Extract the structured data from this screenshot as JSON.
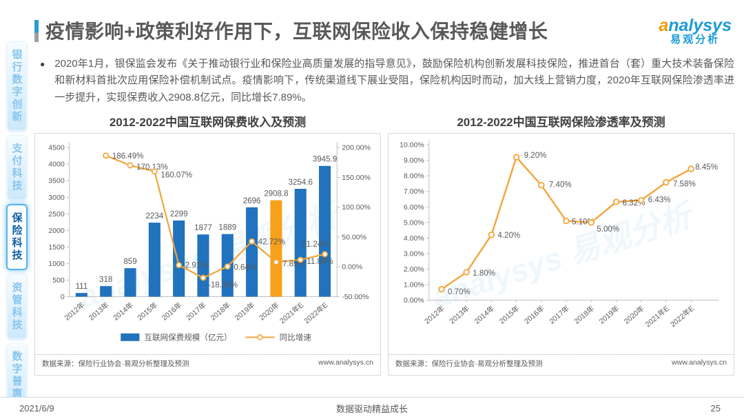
{
  "header": {
    "title": "疫情影响+政策利好作用下，互联网保险收入保持稳健增长",
    "logo": {
      "brand": "analysys",
      "brand_cn": "易观分析"
    }
  },
  "sidebar": {
    "items": [
      {
        "label": "银行数字创新",
        "active": false
      },
      {
        "label": "支付科技",
        "active": false
      },
      {
        "label": "保险科技",
        "active": true
      },
      {
        "label": "资管科技",
        "active": false
      },
      {
        "label": "数字普惠",
        "active": false
      }
    ]
  },
  "bullet": {
    "marker": "●",
    "text": "2020年1月，银保监会发布《关于推动银行业和保险业高质量发展的指导意见》，鼓励保险机构创新发展科技保险，推进首台（套）重大技术装备保险和新材料首批次应用保险补偿机制试点。疫情影响下，传统渠道线下展业受阻，保险机构因时而动，加大线上营销力度，2020年互联网保险渗透率进一步提升，实现保费收入2908.8亿元，同比增长7.89%。"
  },
  "watermark": "analysys 易观分析",
  "chart_data": [
    {
      "type": "bar",
      "title": "2012-2022中国互联网保费收入及预测",
      "categories": [
        "2012年",
        "2013年",
        "2014年",
        "2015年",
        "2016年",
        "2017年",
        "2018年",
        "2019年",
        "2020年",
        "2021年E",
        "2022年E"
      ],
      "series": [
        {
          "name": "互联网保费规模（亿元）",
          "type": "bar",
          "color": "#2173bd",
          "highlight_index": 8,
          "highlight_color": "#f7a11a",
          "values": [
            111,
            318,
            859,
            2234,
            2299,
            1877,
            1889,
            2696,
            2908.8,
            3254.6,
            3945.9
          ]
        },
        {
          "name": "同比增速",
          "type": "line",
          "axis": "right",
          "color": "#f2a53a",
          "values": [
            null,
            186.49,
            170.13,
            160.07,
            2.91,
            -18.36,
            0.64,
            42.72,
            7.89,
            11.89,
            21.24
          ],
          "labels": [
            null,
            "186.49%",
            "170.13%",
            "160.07%",
            "2.91%",
            "-18.36%",
            "0.64%",
            "42.72%",
            "7.89%",
            "11.89%",
            "21.24%"
          ]
        }
      ],
      "left_axis": {
        "min": 0,
        "max": 4500,
        "step": 500
      },
      "right_axis": {
        "min": -50,
        "max": 200,
        "step": 50,
        "format": "percent"
      },
      "legend_position": "bottom",
      "source": "数据来源：保险行业协会·易观分析整理及预测",
      "site": "www.analysys.cn"
    },
    {
      "type": "line",
      "title": "2012-2022中国互联网保险渗透率及预测",
      "categories": [
        "2012年",
        "2013年",
        "2014年",
        "2015年",
        "2016年",
        "2017年",
        "2018年",
        "2019年",
        "2020年",
        "2021年E",
        "2022年E"
      ],
      "series": [
        {
          "color": "#f2a53a",
          "values": [
            0.7,
            1.8,
            4.2,
            9.2,
            7.4,
            5.1,
            5.0,
            6.32,
            6.43,
            7.58,
            8.45
          ],
          "labels": [
            "0.70%",
            "1.80%",
            "4.20%",
            "9.20%",
            "7.40%",
            "5.10%",
            "5.00%",
            "6.32%",
            "6.43%",
            "7.58%",
            "8.45%"
          ]
        }
      ],
      "y_axis": {
        "min": 0,
        "max": 10,
        "step": 1,
        "format": "percent"
      },
      "source": "数据来源：保险行业协会·易观分析整理及预测",
      "site": "www.analysys.cn"
    }
  ],
  "footer": {
    "date": "2021/6/9",
    "slogan": "数据驱动精益成长",
    "page": "25"
  }
}
